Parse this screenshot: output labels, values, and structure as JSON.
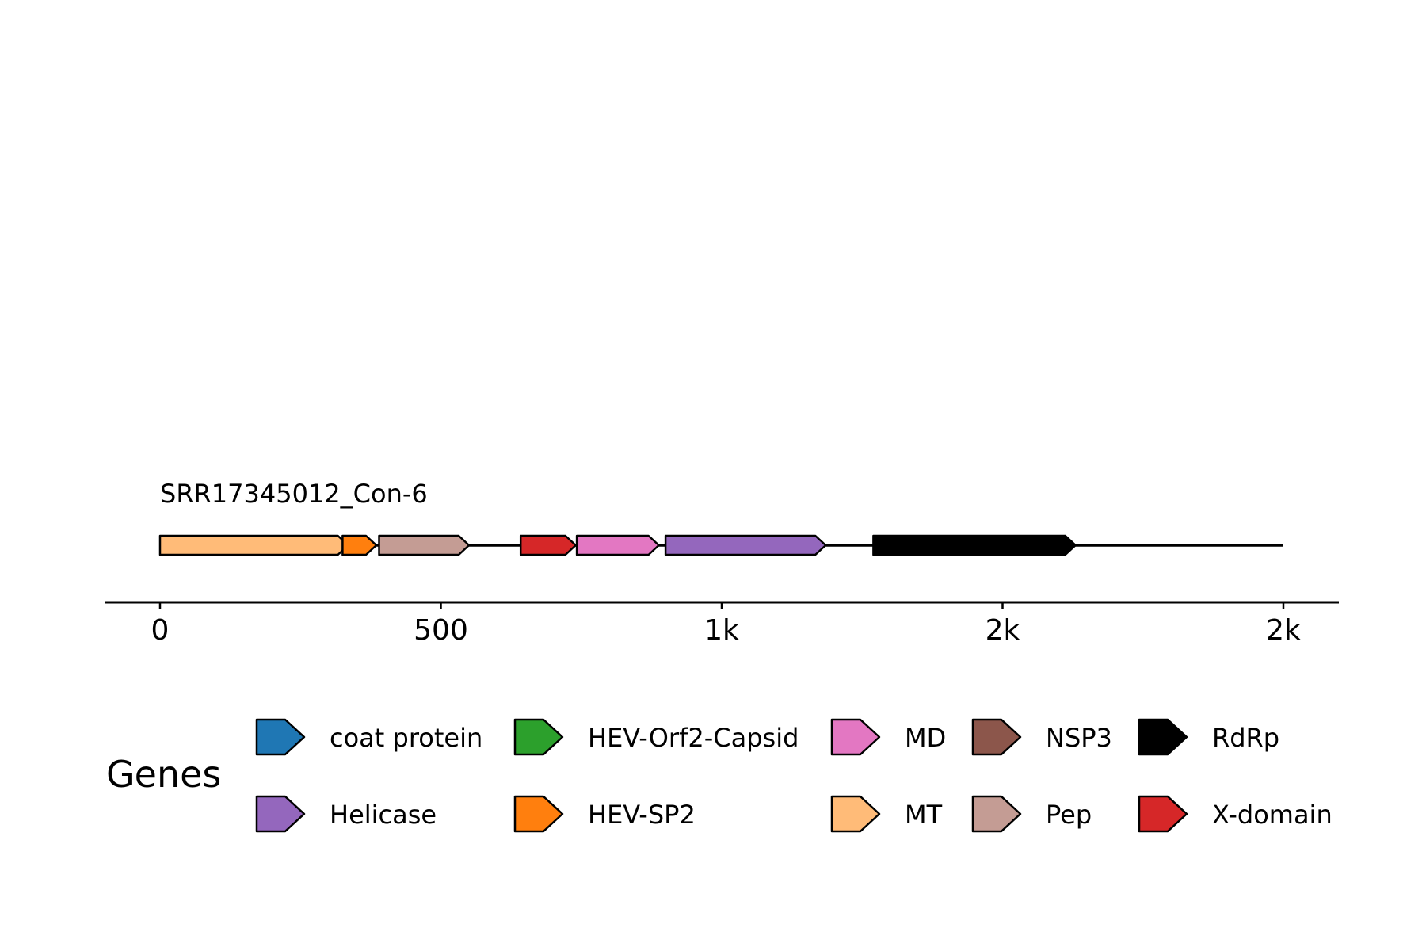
{
  "contig": {
    "name": "SRR17345012_Con-6",
    "length": 2000
  },
  "genes": [
    {
      "name": "MT",
      "start": 0,
      "end": 335,
      "color": "#ffbb78"
    },
    {
      "name": "HEV-SP2",
      "start": 325,
      "end": 385,
      "color": "#ff7f0e"
    },
    {
      "name": "Pep",
      "start": 390,
      "end": 550,
      "color": "#c49c94"
    },
    {
      "name": "X-domain",
      "start": 642,
      "end": 740,
      "color": "#d62728"
    },
    {
      "name": "MD",
      "start": 742,
      "end": 888,
      "color": "#e377c2"
    },
    {
      "name": "Helicase",
      "start": 900,
      "end": 1185,
      "color": "#9467bd"
    },
    {
      "name": "RdRp",
      "start": 1270,
      "end": 1630,
      "color": "#000000"
    }
  ],
  "axis": {
    "min": 0,
    "max": 2000,
    "ticks": [
      {
        "value": 0,
        "label": "0"
      },
      {
        "value": 500,
        "label": "500"
      },
      {
        "value": 1000,
        "label": "1k"
      },
      {
        "value": 1500,
        "label": "2k"
      },
      {
        "value": 2000,
        "label": "2k"
      }
    ]
  },
  "legend": {
    "title": "Genes",
    "entries": [
      {
        "label": "coat protein",
        "color": "#1f77b4"
      },
      {
        "label": "Helicase",
        "color": "#9467bd"
      },
      {
        "label": "HEV-Orf2-Capsid",
        "color": "#2ca02c"
      },
      {
        "label": "HEV-SP2",
        "color": "#ff7f0e"
      },
      {
        "label": "MD",
        "color": "#e377c2"
      },
      {
        "label": "MT",
        "color": "#ffbb78"
      },
      {
        "label": "NSP3",
        "color": "#8c564b"
      },
      {
        "label": "Pep",
        "color": "#c49c94"
      },
      {
        "label": "RdRp",
        "color": "#000000"
      },
      {
        "label": "X-domain",
        "color": "#d62728"
      }
    ]
  }
}
